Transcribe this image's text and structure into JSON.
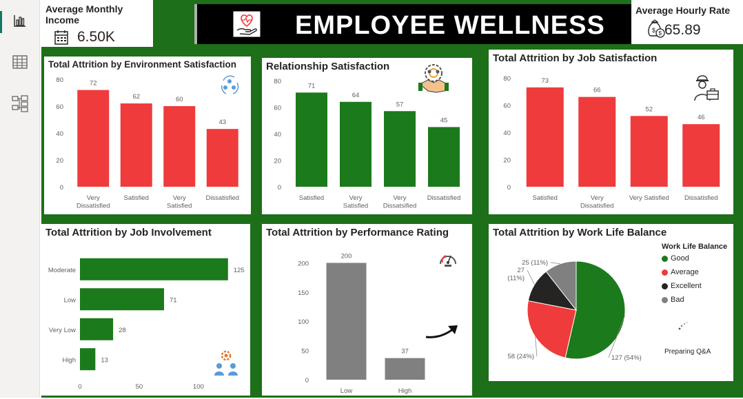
{
  "kpis": {
    "income": {
      "label": "Average Monthly Income",
      "value": "6.50K"
    },
    "hourly": {
      "label": "Average Hourly Rate",
      "value": "65.89"
    }
  },
  "header": {
    "title": "EMPLOYEE WELLNESS"
  },
  "nav": {
    "items": [
      "report-view",
      "table-view",
      "model-view"
    ]
  },
  "colors": {
    "red": "#ef3b3b",
    "green": "#1b7a1b",
    "gray": "#808080",
    "black": "#252423"
  },
  "chart_data": [
    {
      "id": "env",
      "type": "bar",
      "title": "Total Attrition by Environment Satisfaction",
      "categories": [
        "Very\nDissatisfied",
        "Satisfied",
        "Very\nSatisfied",
        "Dissatisfied"
      ],
      "values": [
        72,
        62,
        60,
        43
      ],
      "ylim": [
        0,
        80
      ],
      "yticks": [
        0,
        20,
        40,
        60,
        80
      ],
      "color": "#ef3b3b"
    },
    {
      "id": "rel",
      "type": "bar",
      "title": "Relationship Satisfaction",
      "categories": [
        "Satisfied",
        "Very\nSatisfied",
        "Very\nDissatsified",
        "Dissatisfied"
      ],
      "values": [
        71,
        64,
        57,
        45
      ],
      "ylim": [
        0,
        80
      ],
      "yticks": [
        0,
        20,
        40,
        60,
        80
      ],
      "color": "#1b7a1b"
    },
    {
      "id": "job",
      "type": "bar",
      "title": "Total Attrition by Job Satisfaction",
      "categories": [
        "Satisfied",
        "Very\nDissatisfied",
        "Very Satisfied",
        "Dissatisfied"
      ],
      "values": [
        73,
        66,
        52,
        46
      ],
      "ylim": [
        0,
        80
      ],
      "yticks": [
        0,
        20,
        40,
        60,
        80
      ],
      "color": "#ef3b3b"
    },
    {
      "id": "inv",
      "type": "bar",
      "orientation": "horizontal",
      "title": "Total Attrition by Job Involvement",
      "categories": [
        "Moderate",
        "Low",
        "Very Low",
        "High"
      ],
      "values": [
        125,
        71,
        28,
        13
      ],
      "xlim": [
        0,
        135
      ],
      "xticks": [
        0,
        50,
        100
      ],
      "color": "#1b7a1b"
    },
    {
      "id": "perf",
      "type": "bar",
      "title": "Total Attrition by Performance Rating",
      "categories": [
        "Low",
        "High"
      ],
      "values": [
        200,
        37
      ],
      "ylim": [
        0,
        210
      ],
      "yticks": [
        0,
        50,
        100,
        150,
        200
      ],
      "color": "#808080"
    },
    {
      "id": "wlb",
      "type": "pie",
      "title": "Total Attrition by Work Life Balance",
      "legend_title": "Work Life Balance",
      "legend": "right",
      "slices": [
        {
          "name": "Good",
          "value": 127,
          "label": "127 (54%)",
          "color": "#1b7a1b"
        },
        {
          "name": "Average",
          "value": 58,
          "label": "58 (24%)",
          "color": "#ef3b3b"
        },
        {
          "name": "Excellent",
          "value": 27,
          "label": "27\n(11%)",
          "color": "#252423"
        },
        {
          "name": "Bad",
          "value": 25,
          "label": "25 (11%)",
          "color": "#808080"
        }
      ],
      "status_text": "Preparing Q&A"
    }
  ]
}
